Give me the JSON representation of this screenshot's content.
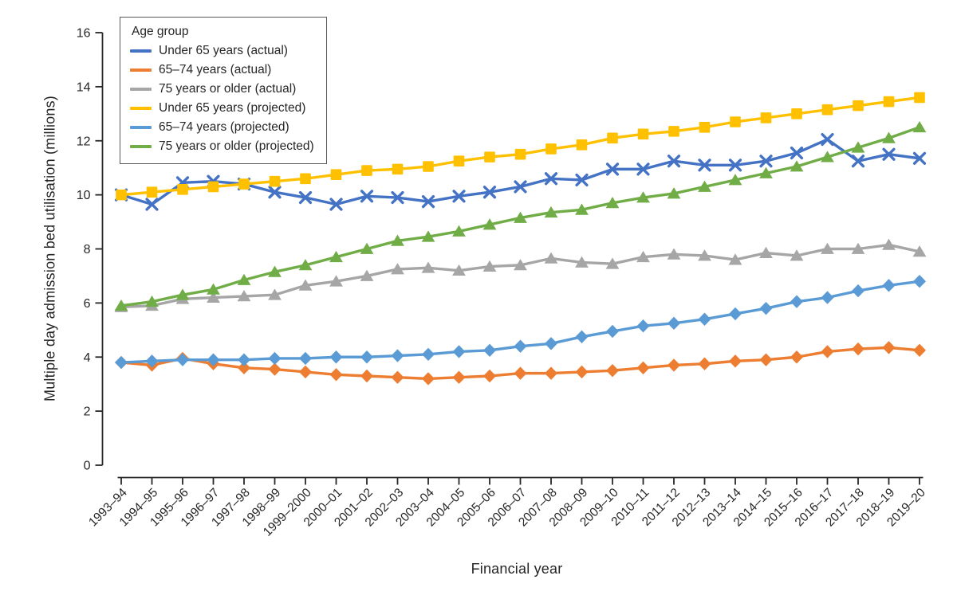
{
  "chart_data": {
    "type": "line",
    "title": "",
    "xlabel": "Financial year",
    "ylabel": "Multiple day admission bed utilisation (millions)",
    "ylim": [
      0,
      16
    ],
    "ytick_step": 2,
    "grid": false,
    "legend_title": "Age group",
    "legend_position": "top-left",
    "axis_color": "#262626",
    "text_color": "#262626",
    "categories": [
      "1993–94",
      "1994–95",
      "1995–96",
      "1996–97",
      "1997–98",
      "1998–99",
      "1999–2000",
      "2000–01",
      "2001–02",
      "2002–03",
      "2003–04",
      "2004–05",
      "2005–06",
      "2006–07",
      "2007–08",
      "2008–09",
      "2009–10",
      "2010–11",
      "2011–12",
      "2012–13",
      "2013–14",
      "2014–15",
      "2015–16",
      "2016–17",
      "2017–18",
      "2018–19",
      "2019–20"
    ],
    "series": [
      {
        "name": "Under 65 years (actual)",
        "color": "#4472C4",
        "marker": "x",
        "values": [
          10.0,
          9.65,
          10.45,
          10.5,
          10.4,
          10.1,
          9.9,
          9.65,
          9.95,
          9.9,
          9.75,
          9.95,
          10.1,
          10.3,
          10.6,
          10.55,
          10.95,
          10.95,
          11.25,
          11.1,
          11.1,
          11.25,
          11.55,
          12.05,
          11.25,
          11.5,
          11.35
        ]
      },
      {
        "name": "65–74 years (actual)",
        "color": "#ED7D31",
        "marker": "diamond",
        "values": [
          3.8,
          3.7,
          3.95,
          3.75,
          3.6,
          3.55,
          3.45,
          3.35,
          3.3,
          3.25,
          3.2,
          3.25,
          3.3,
          3.4,
          3.4,
          3.45,
          3.5,
          3.6,
          3.7,
          3.75,
          3.85,
          3.9,
          4.0,
          4.2,
          4.3,
          4.35,
          4.25
        ]
      },
      {
        "name": "75 years or older (actual)",
        "color": "#A6A6A6",
        "marker": "triangle",
        "values": [
          5.85,
          5.9,
          6.15,
          6.2,
          6.25,
          6.3,
          6.65,
          6.8,
          7.0,
          7.25,
          7.3,
          7.2,
          7.35,
          7.4,
          7.65,
          7.5,
          7.45,
          7.7,
          7.8,
          7.75,
          7.6,
          7.85,
          7.75,
          8.0,
          8.0,
          8.15,
          7.9
        ]
      },
      {
        "name": "Under 65 years (projected)",
        "color": "#FFC000",
        "marker": "square",
        "values": [
          10.0,
          10.1,
          10.2,
          10.3,
          10.4,
          10.5,
          10.6,
          10.75,
          10.9,
          10.95,
          11.05,
          11.25,
          11.4,
          11.5,
          11.7,
          11.85,
          12.1,
          12.25,
          12.35,
          12.5,
          12.7,
          12.85,
          13.0,
          13.15,
          13.3,
          13.45,
          13.6
        ]
      },
      {
        "name": "65–74 years (projected)",
        "color": "#5B9BD5",
        "marker": "diamond",
        "values": [
          3.8,
          3.85,
          3.9,
          3.9,
          3.9,
          3.95,
          3.95,
          4.0,
          4.0,
          4.05,
          4.1,
          4.2,
          4.25,
          4.4,
          4.5,
          4.75,
          4.95,
          5.15,
          5.25,
          5.4,
          5.6,
          5.8,
          6.05,
          6.2,
          6.45,
          6.65,
          6.8
        ]
      },
      {
        "name": "75 years or older (projected)",
        "color": "#70AD47",
        "marker": "triangle",
        "values": [
          5.9,
          6.05,
          6.3,
          6.5,
          6.85,
          7.15,
          7.4,
          7.7,
          8.0,
          8.3,
          8.45,
          8.65,
          8.9,
          9.15,
          9.35,
          9.45,
          9.7,
          9.9,
          10.05,
          10.3,
          10.55,
          10.8,
          11.05,
          11.4,
          11.75,
          12.1,
          12.5
        ]
      }
    ]
  }
}
